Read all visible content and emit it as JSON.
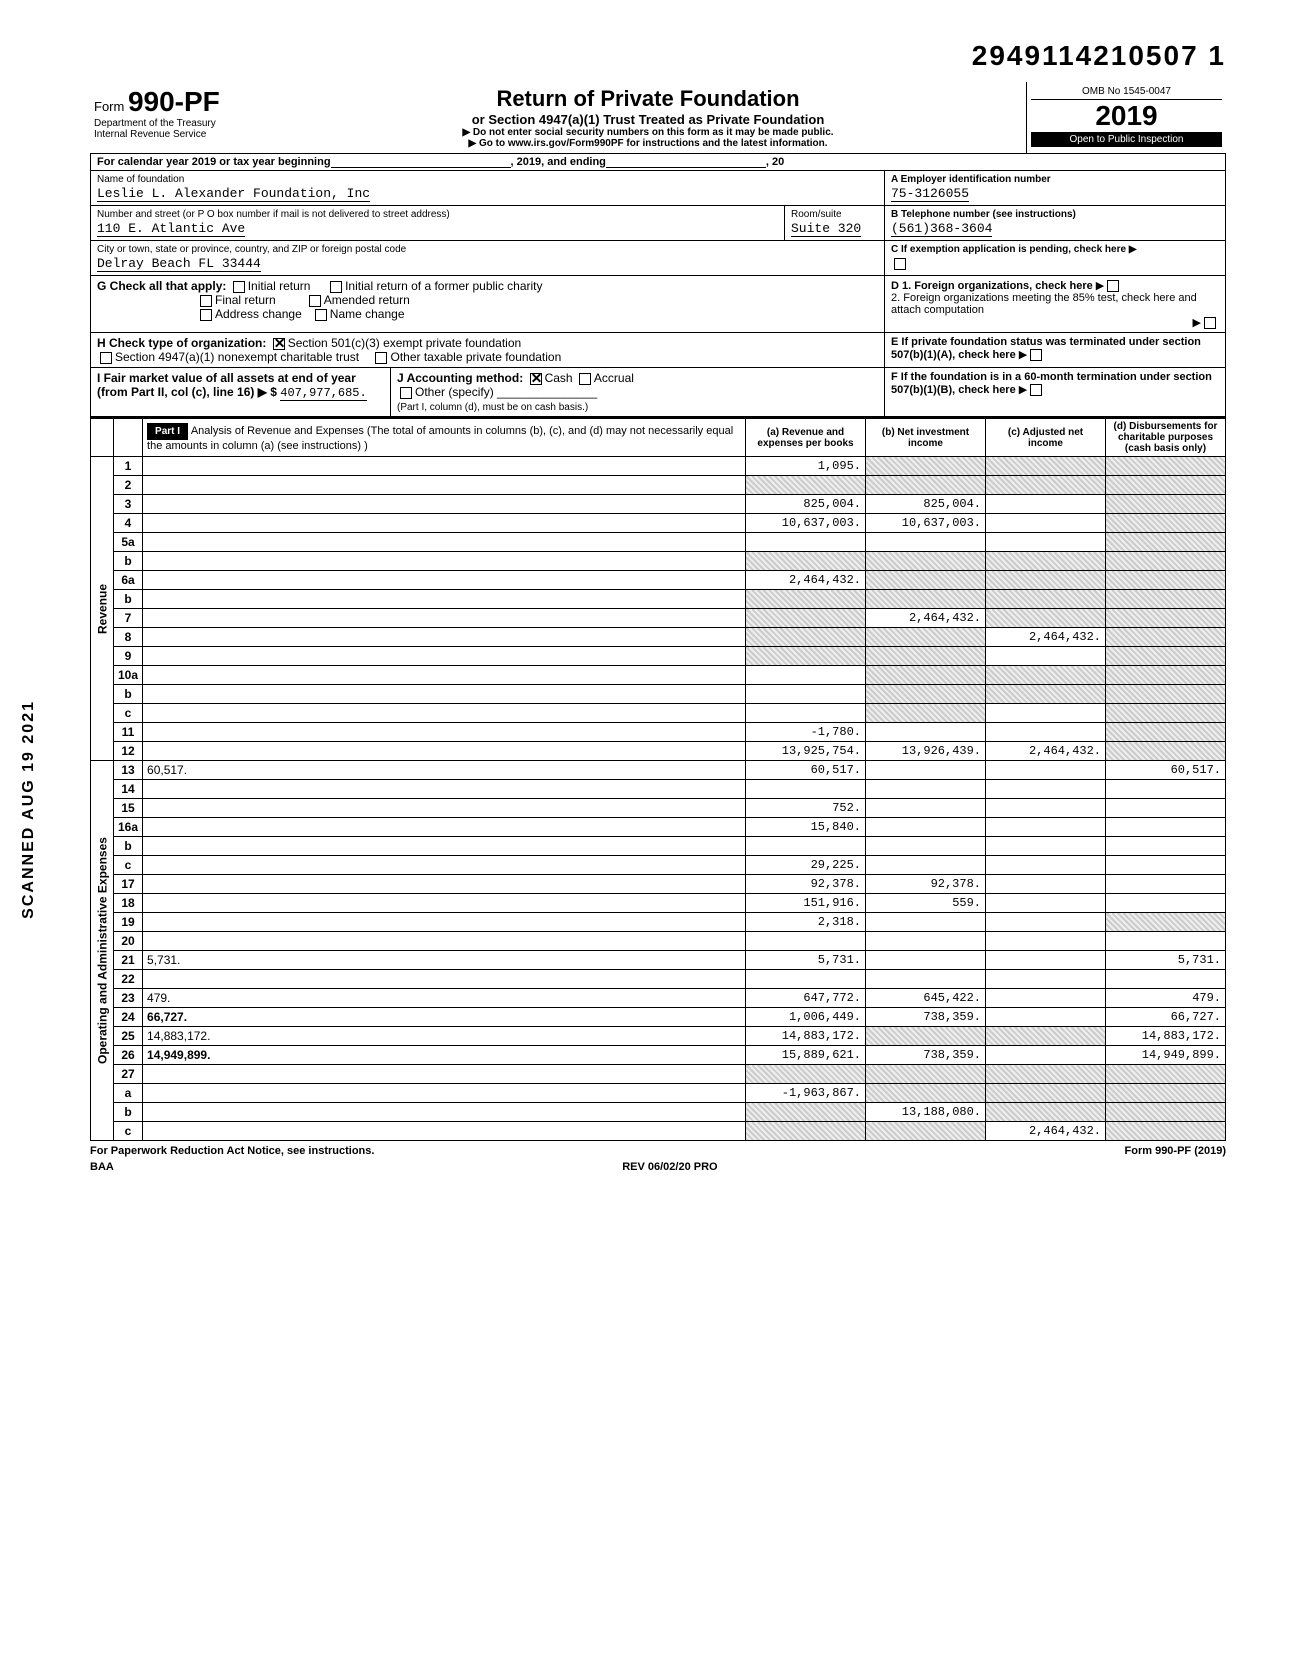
{
  "tracking_number": "2949114210507 1",
  "header": {
    "form_prefix": "Form",
    "form_number": "990-PF",
    "dept1": "Department of the Treasury",
    "dept2": "Internal Revenue Service",
    "title": "Return of Private Foundation",
    "subtitle": "or Section 4947(a)(1) Trust Treated as Private Foundation",
    "warn": "▶ Do not enter social security numbers on this form as it may be made public.",
    "goto": "▶ Go to www.irs.gov/Form990PF for instructions and the latest information.",
    "omb": "OMB No 1545-0047",
    "year": "2019",
    "open": "Open to Public Inspection"
  },
  "calendar": {
    "label_a": "For calendar year 2019 or tax year beginning",
    "label_b": ", 2019, and ending",
    "label_c": ", 20"
  },
  "id": {
    "name_label": "Name of foundation",
    "name": "Leslie L. Alexander Foundation, Inc",
    "addr_label": "Number and street (or P O box number if mail is not delivered to street address)",
    "addr": "110 E. Atlantic Ave",
    "room_label": "Room/suite",
    "room": "Suite 320",
    "city_label": "City or town, state or province, country, and ZIP or foreign postal code",
    "city": "Delray Beach FL 33444",
    "A_label": "A  Employer identification number",
    "A_val": "75-3126055",
    "B_label": "B  Telephone number (see instructions)",
    "B_val": "(561)368-3604",
    "C_label": "C  If exemption application is pending, check here ▶"
  },
  "G": {
    "label": "G  Check all that apply:",
    "opt1": "Initial return",
    "opt2": "Initial return of a former public charity",
    "opt3": "Final return",
    "opt4": "Amended return",
    "opt5": "Address change",
    "opt6": "Name change"
  },
  "H": {
    "label": "H  Check type of organization:",
    "opt1": "Section 501(c)(3) exempt private foundation",
    "opt2": "Section 4947(a)(1) nonexempt charitable trust",
    "opt3": "Other taxable private foundation"
  },
  "I": {
    "label": "I   Fair market value of all assets at end of year (from Part II, col (c), line 16) ▶ $",
    "val": "407,977,685."
  },
  "J": {
    "label": "J  Accounting method:",
    "cash": "Cash",
    "accrual": "Accrual",
    "other": "Other (specify)",
    "note": "(Part I, column (d), must be on cash basis.)"
  },
  "D": {
    "d1": "D  1. Foreign organizations, check here",
    "d2": "2. Foreign organizations meeting the 85% test, check here and attach computation"
  },
  "E": {
    "label": "E  If private foundation status was terminated under section 507(b)(1)(A), check here"
  },
  "F": {
    "label": "F  If the foundation is in a 60-month termination under section 507(b)(1)(B), check here"
  },
  "part1": {
    "header": "Part I",
    "title": "Analysis of Revenue and Expenses (The total of amounts in columns (b), (c), and (d) may not necessarily equal the amounts in column (a) (see instructions) )",
    "col_a": "(a) Revenue and expenses per books",
    "col_b": "(b) Net investment income",
    "col_c": "(c) Adjusted net income",
    "col_d": "(d) Disbursements for charitable purposes (cash basis only)"
  },
  "section_labels": {
    "revenue": "Revenue",
    "expenses": "Operating and Administrative Expenses"
  },
  "rows": [
    {
      "n": "1",
      "d": "",
      "a": "1,095.",
      "b": "",
      "c": "",
      "sb": true,
      "sc": true,
      "sd": true
    },
    {
      "n": "2",
      "d": "",
      "a": "",
      "b": "",
      "c": "",
      "sa": true,
      "sb": true,
      "sc": true,
      "sd": true
    },
    {
      "n": "3",
      "d": "",
      "a": "825,004.",
      "b": "825,004.",
      "c": "",
      "sd": true
    },
    {
      "n": "4",
      "d": "",
      "a": "10,637,003.",
      "b": "10,637,003.",
      "c": "",
      "sd": true
    },
    {
      "n": "5a",
      "d": "",
      "a": "",
      "b": "",
      "c": "",
      "sd": true
    },
    {
      "n": "b",
      "d": "",
      "a": "",
      "b": "",
      "c": "",
      "sa": true,
      "sb": true,
      "sc": true,
      "sd": true
    },
    {
      "n": "6a",
      "d": "",
      "a": "2,464,432.",
      "b": "",
      "c": "",
      "sb": true,
      "sc": true,
      "sd": true
    },
    {
      "n": "b",
      "d": "",
      "a": "",
      "b": "",
      "c": "",
      "sa": true,
      "sb": true,
      "sc": true,
      "sd": true
    },
    {
      "n": "7",
      "d": "",
      "a": "",
      "b": "2,464,432.",
      "c": "",
      "sa": true,
      "sc": true,
      "sd": true
    },
    {
      "n": "8",
      "d": "",
      "a": "",
      "b": "",
      "c": "2,464,432.",
      "sa": true,
      "sb": true,
      "sd": true
    },
    {
      "n": "9",
      "d": "",
      "a": "",
      "b": "",
      "c": "",
      "sa": true,
      "sb": true,
      "sd": true
    },
    {
      "n": "10a",
      "d": "",
      "a": "",
      "b": "",
      "c": "",
      "sb": true,
      "sc": true,
      "sd": true
    },
    {
      "n": "b",
      "d": "",
      "a": "",
      "b": "",
      "c": "",
      "sb": true,
      "sc": true,
      "sd": true
    },
    {
      "n": "c",
      "d": "",
      "a": "",
      "b": "",
      "c": "",
      "sb": true,
      "sd": true
    },
    {
      "n": "11",
      "d": "",
      "a": "-1,780.",
      "b": "",
      "c": "",
      "sd": true
    },
    {
      "n": "12",
      "d": "",
      "a": "13,925,754.",
      "b": "13,926,439.",
      "c": "2,464,432.",
      "sd": true,
      "bold": true
    },
    {
      "n": "13",
      "d": "60,517.",
      "a": "60,517.",
      "b": "",
      "c": ""
    },
    {
      "n": "14",
      "d": "",
      "a": "",
      "b": "",
      "c": ""
    },
    {
      "n": "15",
      "d": "",
      "a": "752.",
      "b": "",
      "c": ""
    },
    {
      "n": "16a",
      "d": "",
      "a": "15,840.",
      "b": "",
      "c": ""
    },
    {
      "n": "b",
      "d": "",
      "a": "",
      "b": "",
      "c": ""
    },
    {
      "n": "c",
      "d": "",
      "a": "29,225.",
      "b": "",
      "c": ""
    },
    {
      "n": "17",
      "d": "",
      "a": "92,378.",
      "b": "92,378.",
      "c": ""
    },
    {
      "n": "18",
      "d": "",
      "a": "151,916.",
      "b": "559.",
      "c": ""
    },
    {
      "n": "19",
      "d": "",
      "a": "2,318.",
      "b": "",
      "c": "",
      "sd": true
    },
    {
      "n": "20",
      "d": "",
      "a": "",
      "b": "",
      "c": ""
    },
    {
      "n": "21",
      "d": "5,731.",
      "a": "5,731.",
      "b": "",
      "c": ""
    },
    {
      "n": "22",
      "d": "",
      "a": "",
      "b": "",
      "c": ""
    },
    {
      "n": "23",
      "d": "479.",
      "a": "647,772.",
      "b": "645,422.",
      "c": ""
    },
    {
      "n": "24",
      "d": "66,727.",
      "a": "1,006,449.",
      "b": "738,359.",
      "c": "",
      "bold": true
    },
    {
      "n": "25",
      "d": "14,883,172.",
      "a": "14,883,172.",
      "b": "",
      "c": "",
      "sb": true,
      "sc": true
    },
    {
      "n": "26",
      "d": "14,949,899.",
      "a": "15,889,621.",
      "b": "738,359.",
      "c": "",
      "bold": true
    },
    {
      "n": "27",
      "d": "",
      "a": "",
      "b": "",
      "c": "",
      "sa": true,
      "sb": true,
      "sc": true,
      "sd": true
    },
    {
      "n": "a",
      "d": "",
      "a": "-1,963,867.",
      "b": "",
      "c": "",
      "sb": true,
      "sc": true,
      "sd": true,
      "bold": true
    },
    {
      "n": "b",
      "d": "",
      "a": "",
      "b": "13,188,080.",
      "c": "",
      "sa": true,
      "sc": true,
      "sd": true,
      "bold": true
    },
    {
      "n": "c",
      "d": "",
      "a": "",
      "b": "",
      "c": "2,464,432.",
      "sa": true,
      "sb": true,
      "sd": true,
      "bold": true
    }
  ],
  "footer": {
    "left": "For Paperwork Reduction Act Notice, see instructions.",
    "baa": "BAA",
    "rev": "REV 06/02/20 PRO",
    "right": "Form 990-PF (2019)"
  },
  "side_stamp": "SCANNED AUG 19 2021"
}
